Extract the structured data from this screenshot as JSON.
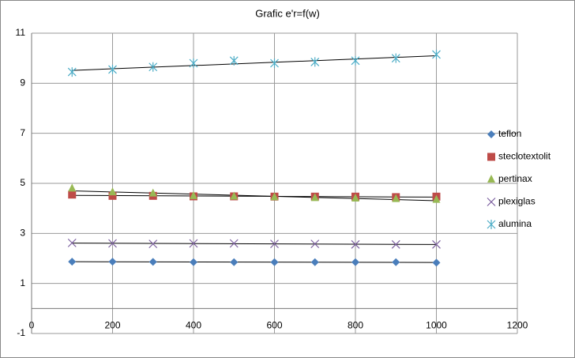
{
  "chart_data": {
    "type": "scatter",
    "title": "Grafic   e'r=f(w)",
    "x": [
      100,
      200,
      300,
      400,
      500,
      600,
      700,
      800,
      900,
      1000
    ],
    "series": [
      {
        "name": "teflon",
        "color": "#4a7ebb",
        "marker": "diamond",
        "values": [
          1.87,
          1.87,
          1.86,
          1.85,
          1.85,
          1.85,
          1.85,
          1.85,
          1.85,
          1.83
        ]
      },
      {
        "name": "steclotextolit",
        "color": "#be4b48",
        "marker": "square",
        "values": [
          4.55,
          4.5,
          4.5,
          4.48,
          4.48,
          4.47,
          4.47,
          4.47,
          4.45,
          4.47
        ]
      },
      {
        "name": "pertinax",
        "color": "#98b954",
        "marker": "triangle",
        "values": [
          4.8,
          4.65,
          4.6,
          4.5,
          4.48,
          4.45,
          4.42,
          4.4,
          4.38,
          4.35
        ]
      },
      {
        "name": "plexiglas",
        "color": "#7d60a0",
        "marker": "x",
        "values": [
          2.62,
          2.6,
          2.58,
          2.6,
          2.6,
          2.58,
          2.58,
          2.56,
          2.56,
          2.56
        ]
      },
      {
        "name": "alumina",
        "color": "#4bacc6",
        "marker": "star",
        "values": [
          9.45,
          9.55,
          9.65,
          9.8,
          9.9,
          9.8,
          9.85,
          9.9,
          10.0,
          10.15
        ]
      }
    ],
    "xlim": [
      0,
      1200
    ],
    "xticks": [
      0,
      200,
      400,
      600,
      800,
      1000,
      1200
    ],
    "ylim": [
      -1,
      11
    ],
    "yticks": [
      -1,
      1,
      3,
      5,
      7,
      9,
      11
    ],
    "grid": true,
    "trendline": true,
    "legend": "right"
  }
}
